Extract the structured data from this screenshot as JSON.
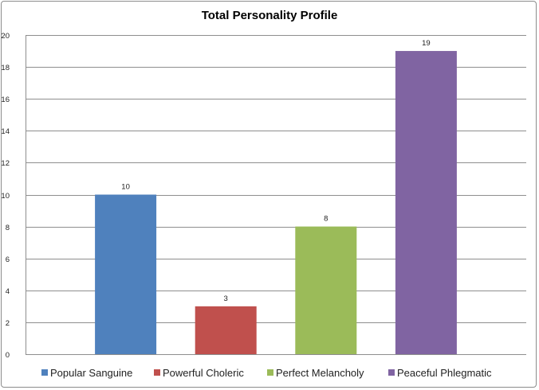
{
  "chart_data": {
    "type": "bar",
    "title": "Total Personality Profile",
    "ylim": [
      0,
      20
    ],
    "yticks": [
      0,
      2,
      4,
      6,
      8,
      10,
      12,
      14,
      16,
      18,
      20
    ],
    "grid": true,
    "legend_position": "bottom",
    "series": [
      {
        "name": "Popular Sanguine",
        "value": 10,
        "color": "#4f81bd"
      },
      {
        "name": "Powerful Choleric",
        "value": 3,
        "color": "#c0504d"
      },
      {
        "name": "Perfect Melancholy",
        "value": 8,
        "color": "#9bbb59"
      },
      {
        "name": "Peaceful Phlegmatic",
        "value": 19,
        "color": "#8064a2"
      }
    ]
  }
}
